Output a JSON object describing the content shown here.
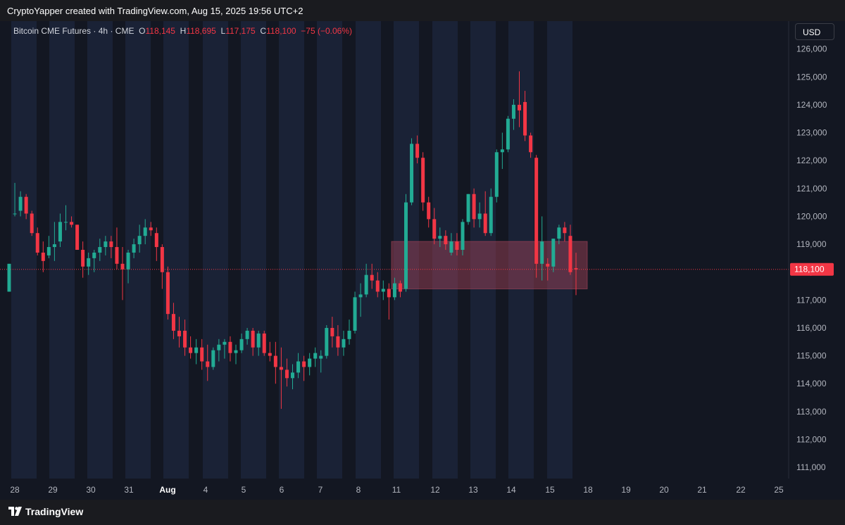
{
  "header": {
    "creator_text": "CryptoYapper created with TradingView.com, Aug 15, 2025 19:56 UTC+2"
  },
  "legend": {
    "symbol": "Bitcoin CME Futures",
    "sep1": "·",
    "interval": "4h",
    "sep2": "·",
    "exchange": "CME",
    "open_label": "O",
    "open_value": "118,145",
    "high_label": "H",
    "high_value": "118,695",
    "low_label": "L",
    "low_value": "117,175",
    "close_label": "C",
    "close_value": "118,100",
    "change": "−75 (−0.06%)"
  },
  "currency_button": "USD",
  "last_price_label": "118,100",
  "brand": {
    "name": "TradingView"
  },
  "colors": {
    "up": "#22ab94",
    "down": "#f23645",
    "background": "#131722",
    "session_band": "#1a2236",
    "zone_fill": "#a8455b"
  },
  "chart_data": {
    "type": "candlestick",
    "title": "Bitcoin CME Futures · 4h · CME",
    "y_axis_ticks": [
      "111,000",
      "112,000",
      "113,000",
      "114,000",
      "115,000",
      "116,000",
      "117,000",
      "118,000",
      "119,000",
      "120,000",
      "121,000",
      "122,000",
      "123,000",
      "124,000",
      "125,000",
      "126,000"
    ],
    "x_axis_ticks": [
      {
        "label": "28",
        "bold": false
      },
      {
        "label": "29",
        "bold": false
      },
      {
        "label": "30",
        "bold": false
      },
      {
        "label": "31",
        "bold": false
      },
      {
        "label": "Aug",
        "bold": true
      },
      {
        "label": "4",
        "bold": false
      },
      {
        "label": "5",
        "bold": false
      },
      {
        "label": "6",
        "bold": false
      },
      {
        "label": "7",
        "bold": false
      },
      {
        "label": "8",
        "bold": false
      },
      {
        "label": "11",
        "bold": false
      },
      {
        "label": "12",
        "bold": false
      },
      {
        "label": "13",
        "bold": false
      },
      {
        "label": "14",
        "bold": false
      },
      {
        "label": "15",
        "bold": false
      },
      {
        "label": "18",
        "bold": false
      },
      {
        "label": "19",
        "bold": false
      },
      {
        "label": "20",
        "bold": false
      },
      {
        "label": "21",
        "bold": false
      },
      {
        "label": "22",
        "bold": false
      },
      {
        "label": "25",
        "bold": false
      }
    ],
    "ylim": [
      110600,
      127000
    ],
    "last_price": 118100,
    "zone": {
      "from_date": "Aug 11",
      "to_date": "Aug 15",
      "high": 119100,
      "low": 117400
    },
    "candles": [
      {
        "o": 117300,
        "h": 118300,
        "l": 117300,
        "c": 118300
      },
      {
        "o": 120100,
        "h": 121200,
        "l": 120000,
        "c": 120100
      },
      {
        "o": 120200,
        "h": 120900,
        "l": 120000,
        "c": 120700
      },
      {
        "o": 120700,
        "h": 120800,
        "l": 119900,
        "c": 120100
      },
      {
        "o": 120100,
        "h": 120200,
        "l": 119300,
        "c": 119400
      },
      {
        "o": 119400,
        "h": 119600,
        "l": 118600,
        "c": 118700
      },
      {
        "o": 118700,
        "h": 119100,
        "l": 118000,
        "c": 118400
      },
      {
        "o": 118600,
        "h": 119300,
        "l": 118500,
        "c": 118900
      },
      {
        "o": 118900,
        "h": 119800,
        "l": 118400,
        "c": 119000
      },
      {
        "o": 119100,
        "h": 120100,
        "l": 118900,
        "c": 119800
      },
      {
        "o": 119800,
        "h": 120400,
        "l": 119500,
        "c": 119800
      },
      {
        "o": 119800,
        "h": 120000,
        "l": 119600,
        "c": 119700
      },
      {
        "o": 119700,
        "h": 119700,
        "l": 118800,
        "c": 118800
      },
      {
        "o": 118800,
        "h": 119100,
        "l": 117800,
        "c": 118200
      },
      {
        "o": 118200,
        "h": 118700,
        "l": 117900,
        "c": 118500
      },
      {
        "o": 118500,
        "h": 118800,
        "l": 118000,
        "c": 118700
      },
      {
        "o": 118700,
        "h": 119200,
        "l": 118400,
        "c": 118900
      },
      {
        "o": 118900,
        "h": 119300,
        "l": 118600,
        "c": 119100
      },
      {
        "o": 119100,
        "h": 119300,
        "l": 118500,
        "c": 118900
      },
      {
        "o": 118900,
        "h": 119600,
        "l": 118100,
        "c": 118300
      },
      {
        "o": 118300,
        "h": 118900,
        "l": 117000,
        "c": 118100
      },
      {
        "o": 118100,
        "h": 118800,
        "l": 117600,
        "c": 118700
      },
      {
        "o": 118700,
        "h": 119200,
        "l": 118500,
        "c": 119000
      },
      {
        "o": 119000,
        "h": 119700,
        "l": 118700,
        "c": 119300
      },
      {
        "o": 119300,
        "h": 119900,
        "l": 119000,
        "c": 119600
      },
      {
        "o": 119600,
        "h": 119800,
        "l": 119300,
        "c": 119500
      },
      {
        "o": 119400,
        "h": 119600,
        "l": 118400,
        "c": 118900
      },
      {
        "o": 118900,
        "h": 119000,
        "l": 117400,
        "c": 118000
      },
      {
        "o": 118000,
        "h": 118200,
        "l": 116300,
        "c": 116500
      },
      {
        "o": 116500,
        "h": 116900,
        "l": 115600,
        "c": 115900
      },
      {
        "o": 115900,
        "h": 116400,
        "l": 115300,
        "c": 115700
      },
      {
        "o": 115900,
        "h": 116300,
        "l": 115000,
        "c": 115300
      },
      {
        "o": 115300,
        "h": 115700,
        "l": 114900,
        "c": 115100
      },
      {
        "o": 115100,
        "h": 115600,
        "l": 114700,
        "c": 115300
      },
      {
        "o": 115300,
        "h": 115600,
        "l": 114500,
        "c": 114800
      },
      {
        "o": 114800,
        "h": 115400,
        "l": 114100,
        "c": 114600
      },
      {
        "o": 114600,
        "h": 115300,
        "l": 114500,
        "c": 115200
      },
      {
        "o": 115200,
        "h": 115600,
        "l": 114800,
        "c": 115400
      },
      {
        "o": 115400,
        "h": 115600,
        "l": 114900,
        "c": 115500
      },
      {
        "o": 115500,
        "h": 115700,
        "l": 114800,
        "c": 115100
      },
      {
        "o": 115100,
        "h": 115400,
        "l": 114700,
        "c": 115200
      },
      {
        "o": 115200,
        "h": 115800,
        "l": 115100,
        "c": 115600
      },
      {
        "o": 115600,
        "h": 116000,
        "l": 115400,
        "c": 115900
      },
      {
        "o": 115900,
        "h": 116000,
        "l": 115000,
        "c": 115300
      },
      {
        "o": 115300,
        "h": 115900,
        "l": 115000,
        "c": 115800
      },
      {
        "o": 115800,
        "h": 115900,
        "l": 115000,
        "c": 115100
      },
      {
        "o": 115100,
        "h": 115500,
        "l": 114800,
        "c": 115000
      },
      {
        "o": 115000,
        "h": 115500,
        "l": 114000,
        "c": 114600
      },
      {
        "o": 114600,
        "h": 115300,
        "l": 113100,
        "c": 114500
      },
      {
        "o": 114500,
        "h": 114900,
        "l": 113900,
        "c": 114200
      },
      {
        "o": 114200,
        "h": 114700,
        "l": 113800,
        "c": 114400
      },
      {
        "o": 114400,
        "h": 115100,
        "l": 114200,
        "c": 114800
      },
      {
        "o": 114800,
        "h": 115000,
        "l": 114100,
        "c": 114600
      },
      {
        "o": 114600,
        "h": 115100,
        "l": 114300,
        "c": 114900
      },
      {
        "o": 114900,
        "h": 115300,
        "l": 114600,
        "c": 115100
      },
      {
        "o": 114900,
        "h": 115200,
        "l": 114400,
        "c": 115000
      },
      {
        "o": 115000,
        "h": 116100,
        "l": 114900,
        "c": 116000
      },
      {
        "o": 116000,
        "h": 116400,
        "l": 115300,
        "c": 115700
      },
      {
        "o": 115700,
        "h": 116100,
        "l": 115000,
        "c": 115300
      },
      {
        "o": 115300,
        "h": 115900,
        "l": 115000,
        "c": 115600
      },
      {
        "o": 115600,
        "h": 116300,
        "l": 115400,
        "c": 115900
      },
      {
        "o": 115900,
        "h": 117300,
        "l": 115800,
        "c": 117100
      },
      {
        "o": 117100,
        "h": 117600,
        "l": 116400,
        "c": 117200
      },
      {
        "o": 117200,
        "h": 118300,
        "l": 117100,
        "c": 117900
      },
      {
        "o": 117900,
        "h": 118300,
        "l": 117400,
        "c": 117700
      },
      {
        "o": 117700,
        "h": 118000,
        "l": 117100,
        "c": 117300
      },
      {
        "o": 117300,
        "h": 117700,
        "l": 117000,
        "c": 117400
      },
      {
        "o": 117400,
        "h": 117600,
        "l": 116300,
        "c": 117100
      },
      {
        "o": 117100,
        "h": 117800,
        "l": 117000,
        "c": 117600
      },
      {
        "o": 117600,
        "h": 117700,
        "l": 117100,
        "c": 117300
      },
      {
        "o": 117400,
        "h": 120800,
        "l": 117300,
        "c": 120500
      },
      {
        "o": 120500,
        "h": 122800,
        "l": 120400,
        "c": 122600
      },
      {
        "o": 122600,
        "h": 122900,
        "l": 121900,
        "c": 122100
      },
      {
        "o": 122100,
        "h": 122300,
        "l": 120200,
        "c": 120500
      },
      {
        "o": 120500,
        "h": 120700,
        "l": 119600,
        "c": 119900
      },
      {
        "o": 119900,
        "h": 120300,
        "l": 119000,
        "c": 119200
      },
      {
        "o": 119200,
        "h": 119600,
        "l": 118900,
        "c": 119300
      },
      {
        "o": 119300,
        "h": 119500,
        "l": 118800,
        "c": 119000
      },
      {
        "o": 118700,
        "h": 119400,
        "l": 118600,
        "c": 119100
      },
      {
        "o": 119100,
        "h": 119400,
        "l": 118600,
        "c": 118800
      },
      {
        "o": 118800,
        "h": 119900,
        "l": 118600,
        "c": 119800
      },
      {
        "o": 119800,
        "h": 120800,
        "l": 119700,
        "c": 120800
      },
      {
        "o": 120800,
        "h": 121000,
        "l": 119600,
        "c": 119900
      },
      {
        "o": 119900,
        "h": 120500,
        "l": 119600,
        "c": 120100
      },
      {
        "o": 120100,
        "h": 120900,
        "l": 119300,
        "c": 119400
      },
      {
        "o": 119400,
        "h": 121000,
        "l": 119300,
        "c": 120700
      },
      {
        "o": 120700,
        "h": 122400,
        "l": 120500,
        "c": 122300
      },
      {
        "o": 122300,
        "h": 123000,
        "l": 121700,
        "c": 122400
      },
      {
        "o": 122400,
        "h": 123600,
        "l": 122300,
        "c": 123500
      },
      {
        "o": 123500,
        "h": 124200,
        "l": 123100,
        "c": 124000
      },
      {
        "o": 124000,
        "h": 125200,
        "l": 123200,
        "c": 123800
      },
      {
        "o": 124100,
        "h": 124500,
        "l": 122700,
        "c": 122900
      },
      {
        "o": 122900,
        "h": 123000,
        "l": 122100,
        "c": 122300
      },
      {
        "o": 122100,
        "h": 122200,
        "l": 117800,
        "c": 118300
      },
      {
        "o": 118300,
        "h": 120000,
        "l": 117700,
        "c": 119100
      },
      {
        "o": 118300,
        "h": 118500,
        "l": 117700,
        "c": 118200
      },
      {
        "o": 118200,
        "h": 119200,
        "l": 118000,
        "c": 119200
      },
      {
        "o": 119200,
        "h": 119700,
        "l": 119000,
        "c": 119600
      },
      {
        "o": 119600,
        "h": 119800,
        "l": 119100,
        "c": 119400
      },
      {
        "o": 119300,
        "h": 119700,
        "l": 117900,
        "c": 118000
      },
      {
        "o": 118145,
        "h": 118695,
        "l": 117175,
        "c": 118100
      }
    ]
  }
}
